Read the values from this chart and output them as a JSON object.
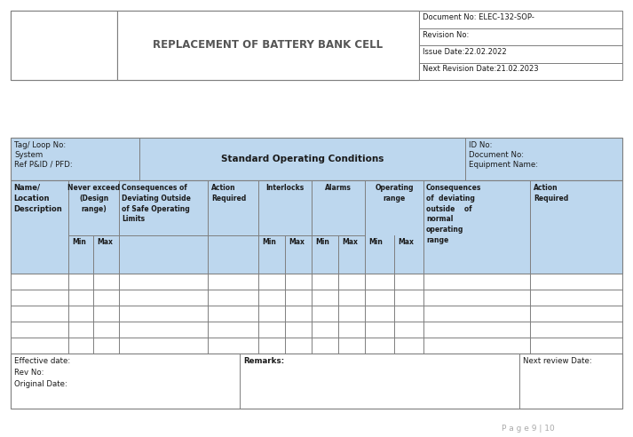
{
  "bg_color": "#ffffff",
  "border_color": "#7f7f7f",
  "table_bg": "#bdd7ee",
  "title_text": "REPLACEMENT OF BATTERY BANK CELL",
  "doc_no": "Document No: ELEC-132-SOP-",
  "rev_no": "Revision No:",
  "issue_date": "Issue Date:22.02.2022",
  "next_rev": "Next Revision Date:21.02.2023",
  "page_footer": "P a g e 9 | 10",
  "tag_loop": "Tag/ Loop No:",
  "system": "System",
  "ref_p": "Ref P&ID / PFD:",
  "soc_title": "Standard Operating Conditions",
  "id_no": "ID No:",
  "doc_no2": "Document No:",
  "equip_name": "Equipment Name:",
  "col_name_loc": "Name/\nLocation\nDescription",
  "col_never_exceed": "Never exceed\n(Design\nrange)",
  "col_consequences": "Consequences of\nDeviating Outside\nof Safe Operating\nLimits",
  "col_action_req1": "Action\nRequired",
  "col_interlocks": "Interlocks",
  "col_alarms": "Alarms",
  "col_op_range": "Operating\nrange",
  "col_consequences2": "Consequences\nof  deviating\noutside    of\nnormal\noperating\nrange",
  "col_action_req2": "Action\nRequired",
  "col_min": "Min",
  "col_max": "Max",
  "eff_date": "Effective date:",
  "rev_no2": "Rev No:",
  "orig_date": "Original Date:",
  "remarks": "Remarks:",
  "next_rev_date": "Next review Date:"
}
